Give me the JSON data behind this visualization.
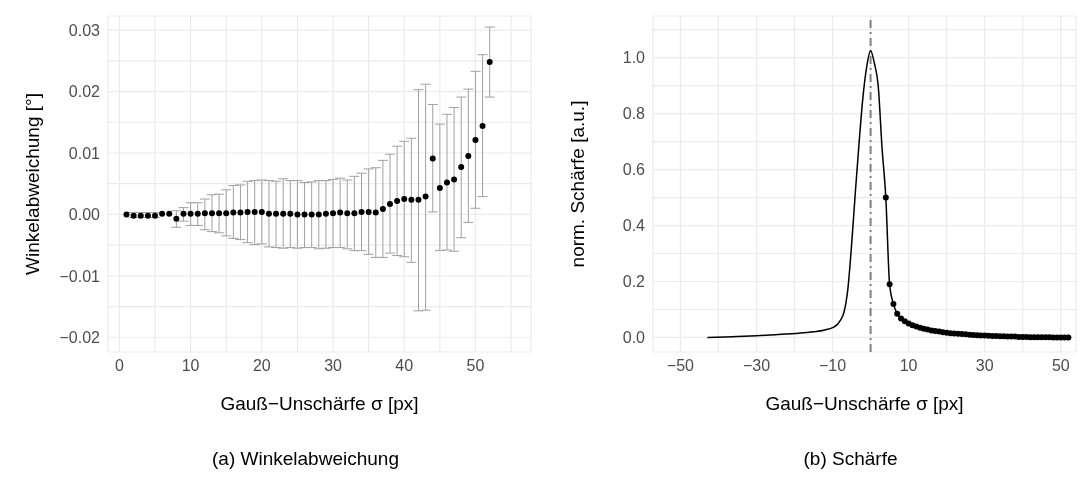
{
  "chart_data": [
    {
      "type": "scatter",
      "xlabel": "Gauß−Unschärfe σ [px]",
      "ylabel": "Winkelabweichung [°]",
      "annotations": [
        "(a) Winkelabweichung"
      ],
      "grid": true,
      "marker": "circle",
      "color": "#000000",
      "x": [
        1,
        2,
        3,
        4,
        5,
        6,
        7,
        8,
        9,
        10,
        11,
        12,
        13,
        14,
        15,
        16,
        17,
        18,
        19,
        20,
        21,
        22,
        23,
        24,
        25,
        26,
        27,
        28,
        29,
        30,
        31,
        32,
        33,
        34,
        35,
        36,
        37,
        38,
        39,
        40,
        41,
        42,
        43,
        44,
        45,
        46,
        47,
        48,
        49,
        50,
        51,
        52
      ],
      "values": [
        0.0,
        -0.0002,
        -0.0002,
        -0.0002,
        -0.0002,
        0.0001,
        0.0001,
        -0.0007,
        0.0001,
        0.0001,
        0.0001,
        0.0002,
        0.0002,
        0.0002,
        0.0002,
        0.0003,
        0.0003,
        0.0004,
        0.0004,
        0.0004,
        0.0001,
        0.0001,
        0.0001,
        0.0001,
        0.0,
        0.0,
        0.0,
        0.0,
        0.0001,
        0.0002,
        0.0003,
        0.0002,
        0.0002,
        0.0004,
        0.0004,
        0.0003,
        0.0009,
        0.0017,
        0.0022,
        0.0025,
        0.0024,
        0.0024,
        0.0029,
        0.0091,
        0.0043,
        0.0052,
        0.0057,
        0.0077,
        0.0095,
        0.0121,
        0.0144,
        0.0248
      ],
      "errors": [
        null,
        [
          -0.0005,
          0.0003
        ],
        [
          -0.0005,
          0.0003
        ],
        [
          -0.0005,
          0.0003
        ],
        [
          -0.0005,
          0.0003
        ],
        null,
        null,
        [
          -0.0021,
          0.0006
        ],
        [
          -0.0011,
          0.0011
        ],
        [
          -0.0018,
          0.0019
        ],
        [
          -0.0018,
          0.0019
        ],
        [
          -0.0025,
          0.0025
        ],
        [
          -0.0028,
          0.0032
        ],
        [
          -0.003,
          0.0033
        ],
        [
          -0.0035,
          0.004
        ],
        [
          -0.0039,
          0.0047
        ],
        [
          -0.0041,
          0.0048
        ],
        [
          -0.0046,
          0.0054
        ],
        [
          -0.0049,
          0.0055
        ],
        [
          -0.0048,
          0.0056
        ],
        [
          -0.0053,
          0.0055
        ],
        [
          -0.0054,
          0.0054
        ],
        [
          -0.0055,
          0.0058
        ],
        [
          -0.0054,
          0.0055
        ],
        [
          -0.0055,
          0.0055
        ],
        [
          -0.0054,
          0.0052
        ],
        [
          -0.0054,
          0.0053
        ],
        [
          -0.0056,
          0.0055
        ],
        [
          -0.0055,
          0.0055
        ],
        [
          -0.0054,
          0.0057
        ],
        [
          -0.0054,
          0.0059
        ],
        [
          -0.0056,
          0.0056
        ],
        [
          -0.0059,
          0.0062
        ],
        [
          -0.0059,
          0.0067
        ],
        [
          -0.0065,
          0.0074
        ],
        [
          -0.007,
          0.0076
        ],
        [
          -0.007,
          0.0088
        ],
        [
          -0.0063,
          0.0098
        ],
        [
          -0.0067,
          0.0111
        ],
        [
          -0.0069,
          0.0119
        ],
        [
          -0.0078,
          0.0124
        ],
        [
          -0.0157,
          0.0203
        ],
        [
          -0.0156,
          0.0212
        ],
        [
          0.0004,
          0.0179
        ],
        [
          -0.0059,
          0.0147
        ],
        [
          -0.0058,
          0.0163
        ],
        [
          -0.006,
          0.0174
        ],
        [
          -0.0038,
          0.0191
        ],
        [
          -0.0013,
          0.0204
        ],
        [
          0.001,
          0.0233
        ],
        [
          0.0029,
          0.026
        ],
        [
          0.0191,
          0.0305
        ]
      ],
      "xlim": [
        -1.6,
        57.8
      ],
      "xticks": [
        0,
        {
          "value": 5,
          "label": null
        },
        10,
        {
          "value": 15,
          "label": null
        },
        20,
        {
          "value": 25,
          "label": null
        },
        30,
        {
          "value": 35,
          "label": null
        },
        40,
        {
          "value": 45,
          "label": null
        },
        50,
        {
          "value": 55,
          "label": null
        }
      ],
      "ylim": [
        -0.0224,
        0.0323
      ],
      "yticks": [
        {
          "value": -0.02,
          "label": "−0.02"
        },
        {
          "value": -0.015,
          "label": null
        },
        {
          "value": -0.01,
          "label": "−0.01"
        },
        {
          "value": -0.005,
          "label": null
        },
        {
          "value": 0,
          "label": "0.00"
        },
        {
          "value": 0.005,
          "label": null
        },
        {
          "value": 0.01,
          "label": "0.01"
        },
        {
          "value": 0.015,
          "label": null
        },
        {
          "value": 0.02,
          "label": "0.02"
        },
        {
          "value": 0.025,
          "label": null
        },
        {
          "value": 0.03,
          "label": "0.03"
        }
      ]
    },
    {
      "type": "scatter",
      "xlabel": "Gauß−Unschärfe σ [px]",
      "ylabel": "norm. Schärfe [a.u.]",
      "annotations": [
        "(b) Schärfe"
      ],
      "grid": true,
      "series": [
        {
          "type": "line",
          "color": "#000000",
          "x": [
            -42.9,
            -35,
            -30,
            -25,
            -20,
            -15,
            -12,
            -10,
            -9,
            -8,
            -7,
            -6,
            -5,
            -4,
            -3,
            -2,
            -1,
            0,
            1,
            2,
            3,
            4,
            5,
            6,
            7,
            8,
            10,
            12,
            15,
            20,
            25,
            30,
            35,
            40,
            45,
            52
          ],
          "values": [
            0,
            0.003,
            0.006,
            0.01,
            0.014,
            0.02,
            0.027,
            0.035,
            0.043,
            0.06,
            0.09,
            0.17,
            0.33,
            0.52,
            0.7,
            0.86,
            0.97,
            1.025,
            0.98,
            0.9,
            0.68,
            0.5,
            0.19,
            0.12,
            0.085,
            0.068,
            0.05,
            0.039,
            0.028,
            0.017,
            0.011,
            0.007,
            0.004,
            0.002,
            0.001,
            0
          ]
        },
        {
          "marker": "circle",
          "color": "#000000",
          "x": [
            4,
            5,
            6,
            7,
            8,
            9,
            10,
            11,
            12,
            13,
            14,
            15,
            16,
            17,
            18,
            19,
            20,
            21,
            22,
            23,
            24,
            25,
            26,
            27,
            28,
            29,
            30,
            31,
            32,
            33,
            34,
            35,
            36,
            37,
            38,
            39,
            40,
            41,
            42,
            43,
            44,
            45,
            46,
            47,
            48,
            49,
            50,
            51,
            52
          ],
          "values": [
            0.5,
            0.19,
            0.12,
            0.085,
            0.068,
            0.058,
            0.05,
            0.044,
            0.039,
            0.035,
            0.031,
            0.028,
            0.025,
            0.023,
            0.021,
            0.019,
            0.017,
            0.015,
            0.014,
            0.013,
            0.012,
            0.011,
            0.01,
            0.009,
            0.008,
            0.007,
            0.007,
            0.006,
            0.005,
            0.005,
            0.004,
            0.004,
            0.003,
            0.003,
            0.003,
            0.002,
            0.002,
            0.002,
            0.001,
            0.001,
            0.001,
            0.001,
            0.001,
            0.001,
            0.0,
            0.0,
            0.0,
            0.0,
            0.0
          ]
        }
      ],
      "ref_lines": [
        {
          "axis": "x",
          "value": 0,
          "color": "#808080",
          "line_style": "dashed"
        }
      ],
      "xlim": [
        -57.2,
        54
      ],
      "xticks": [
        {
          "value": -50,
          "label": "−50"
        },
        {
          "value": -40,
          "label": null
        },
        {
          "value": -30,
          "label": "−30"
        },
        {
          "value": -20,
          "label": null
        },
        {
          "value": -10,
          "label": "−10"
        },
        {
          "value": 0,
          "label": null
        },
        10,
        {
          "value": 20,
          "label": null
        },
        30,
        {
          "value": 40,
          "label": null
        },
        50
      ],
      "ylim": [
        -0.052,
        1.149
      ],
      "yticks": [
        {
          "value": 0,
          "label": "0.0"
        },
        {
          "value": 0.1,
          "label": null
        },
        {
          "value": 0.2,
          "label": "0.2"
        },
        {
          "value": 0.3,
          "label": null
        },
        {
          "value": 0.4,
          "label": "0.4"
        },
        {
          "value": 0.5,
          "label": null
        },
        {
          "value": 0.6,
          "label": "0.6"
        },
        {
          "value": 0.7,
          "label": null
        },
        {
          "value": 0.8,
          "label": "0.8"
        },
        {
          "value": 0.9,
          "label": null
        },
        {
          "value": 1,
          "label": "1.0"
        },
        {
          "value": 1.1,
          "label": null
        }
      ]
    }
  ]
}
